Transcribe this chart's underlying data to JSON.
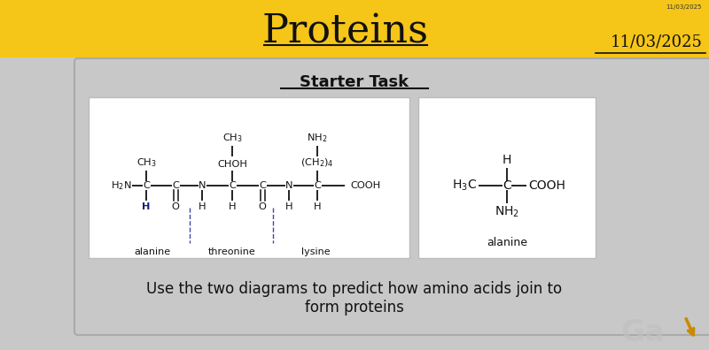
{
  "title": "Proteins",
  "date_tiny": "11/03/2025",
  "date_main": "11/03/2025",
  "header_bg": "#F5C518",
  "content_bg": "#C8C8C8",
  "white": "#FFFFFF",
  "dark": "#111111",
  "blue_dark": "#1A1A7A",
  "starter_task": "Starter Task",
  "body_line1": "Use the two diagrams to predict how amino acids join to",
  "body_line2": "form proteins",
  "watermark": "Ga",
  "arrow_color": "#CC8800"
}
